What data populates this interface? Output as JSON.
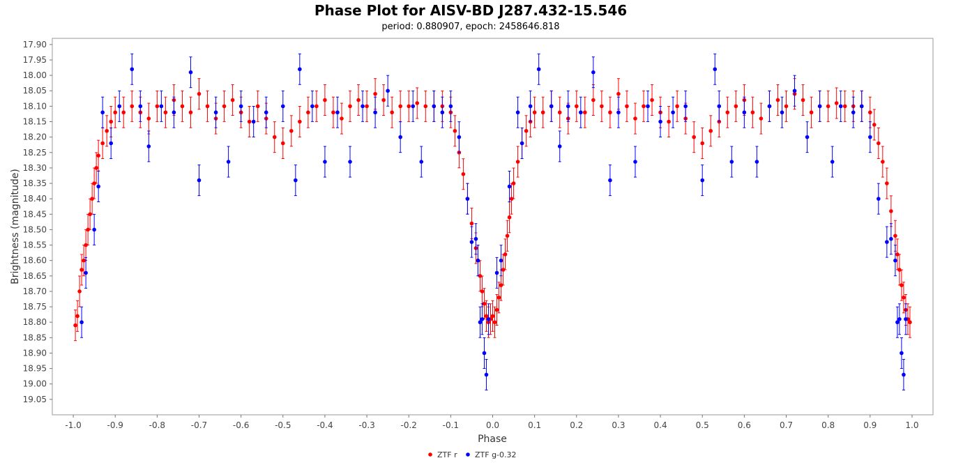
{
  "chart_data": {
    "type": "scatter",
    "title": "Phase Plot for AISV-BD J287.432-15.546",
    "subtitle": "period: 0.880907, epoch: 2458646.818",
    "xlabel": "Phase",
    "ylabel": "Brightness (magnitude)",
    "xlim": [
      -1.05,
      1.05
    ],
    "ylim": [
      19.1,
      17.88
    ],
    "y_inverted": true,
    "grid": false,
    "legend_position": "bottom-center",
    "x_ticks": [
      "-1.0",
      "-0.9",
      "-0.8",
      "-0.7",
      "-0.6",
      "-0.5",
      "-0.4",
      "-0.3",
      "-0.2",
      "-0.1",
      "0.0",
      "0.1",
      "0.2",
      "0.3",
      "0.4",
      "0.5",
      "0.6",
      "0.7",
      "0.8",
      "0.9",
      "1.0"
    ],
    "y_ticks": [
      "17.90",
      "17.95",
      "18.00",
      "18.05",
      "18.10",
      "18.15",
      "18.20",
      "18.25",
      "18.30",
      "18.35",
      "18.40",
      "18.45",
      "18.50",
      "18.55",
      "18.60",
      "18.65",
      "18.70",
      "18.75",
      "18.80",
      "18.85",
      "18.90",
      "18.95",
      "19.00",
      "19.05"
    ],
    "series": [
      {
        "name": "ZTF r",
        "color": "#ff0000",
        "marker": "circle",
        "error_bars": true,
        "x": [
          -0.995,
          -0.99,
          -0.985,
          -0.98,
          -0.975,
          -0.97,
          -0.965,
          -0.96,
          -0.955,
          -0.95,
          -0.945,
          -0.94,
          -0.93,
          -0.92,
          -0.91,
          -0.9,
          -0.88,
          -0.86,
          -0.84,
          -0.82,
          -0.8,
          -0.78,
          -0.76,
          -0.74,
          -0.72,
          -0.7,
          -0.68,
          -0.66,
          -0.64,
          -0.62,
          -0.6,
          -0.58,
          -0.56,
          -0.54,
          -0.52,
          -0.5,
          -0.48,
          -0.46,
          -0.44,
          -0.42,
          -0.4,
          -0.38,
          -0.36,
          -0.34,
          -0.32,
          -0.3,
          -0.28,
          -0.26,
          -0.24,
          -0.22,
          -0.2,
          -0.18,
          -0.16,
          -0.14,
          -0.12,
          -0.1,
          -0.09,
          -0.08,
          -0.07,
          -0.06,
          -0.05,
          -0.04,
          -0.035,
          -0.03,
          -0.025,
          -0.02,
          -0.015,
          -0.01,
          -0.005,
          0.0,
          0.005,
          0.01,
          0.015,
          0.02,
          0.025,
          0.03,
          0.035,
          0.04,
          0.045,
          0.05,
          0.06,
          0.07,
          0.08,
          0.09,
          0.1,
          0.12,
          0.14,
          0.16,
          0.18,
          0.2,
          0.22,
          0.24,
          0.26,
          0.28,
          0.3,
          0.32,
          0.34,
          0.36,
          0.38,
          0.4,
          0.42,
          0.44,
          0.46,
          0.48,
          0.5,
          0.52,
          0.54,
          0.56,
          0.58,
          0.6,
          0.62,
          0.64,
          0.66,
          0.68,
          0.7,
          0.72,
          0.74,
          0.76,
          0.78,
          0.8,
          0.82,
          0.84,
          0.86,
          0.88,
          0.9,
          0.91,
          0.92,
          0.93,
          0.94,
          0.95,
          0.96,
          0.965,
          0.97,
          0.975,
          0.98,
          0.985,
          0.99,
          0.995
        ],
        "y": [
          18.81,
          18.78,
          18.7,
          18.63,
          18.6,
          18.55,
          18.5,
          18.45,
          18.4,
          18.35,
          18.3,
          18.26,
          18.22,
          18.18,
          18.15,
          18.12,
          18.12,
          18.1,
          18.12,
          18.14,
          18.1,
          18.12,
          18.08,
          18.1,
          18.12,
          18.06,
          18.1,
          18.14,
          18.1,
          18.08,
          18.12,
          18.15,
          18.1,
          18.14,
          18.2,
          18.22,
          18.18,
          18.15,
          18.12,
          18.1,
          18.08,
          18.12,
          18.14,
          18.1,
          18.08,
          18.1,
          18.06,
          18.08,
          18.12,
          18.1,
          18.1,
          18.09,
          18.1,
          18.1,
          18.1,
          18.12,
          18.18,
          18.25,
          18.32,
          18.4,
          18.48,
          18.56,
          18.6,
          18.65,
          18.7,
          18.74,
          18.78,
          18.8,
          18.79,
          18.78,
          18.8,
          18.76,
          18.72,
          18.68,
          18.63,
          18.58,
          18.52,
          18.46,
          18.4,
          18.35,
          18.28,
          18.22,
          18.18,
          18.15,
          18.12,
          18.12,
          18.1,
          18.12,
          18.14,
          18.1,
          18.12,
          18.08,
          18.1,
          18.12,
          18.06,
          18.1,
          18.14,
          18.1,
          18.08,
          18.12,
          18.15,
          18.1,
          18.14,
          18.2,
          18.22,
          18.18,
          18.15,
          18.12,
          18.1,
          18.08,
          18.12,
          18.14,
          18.1,
          18.08,
          18.1,
          18.06,
          18.08,
          18.12,
          18.1,
          18.1,
          18.09,
          18.1,
          18.1,
          18.1,
          18.12,
          18.16,
          18.22,
          18.28,
          18.35,
          18.44,
          18.52,
          18.58,
          18.63,
          18.68,
          18.72,
          18.76,
          18.79,
          18.8
        ]
      },
      {
        "name": "ZTF g-0.32",
        "color": "#0000ff",
        "marker": "circle",
        "error_bars": true,
        "x": [
          -0.98,
          -0.97,
          -0.95,
          -0.94,
          -0.93,
          -0.91,
          -0.89,
          -0.86,
          -0.84,
          -0.82,
          -0.79,
          -0.76,
          -0.72,
          -0.7,
          -0.66,
          -0.63,
          -0.6,
          -0.57,
          -0.54,
          -0.5,
          -0.47,
          -0.46,
          -0.43,
          -0.4,
          -0.37,
          -0.34,
          -0.31,
          -0.28,
          -0.25,
          -0.22,
          -0.19,
          -0.17,
          -0.14,
          -0.12,
          -0.1,
          -0.08,
          -0.06,
          -0.05,
          -0.04,
          -0.035,
          -0.03,
          -0.025,
          -0.02,
          -0.015,
          -0.01,
          0.01,
          0.02,
          0.04,
          0.06,
          0.07,
          0.09,
          0.11,
          0.14,
          0.16,
          0.18,
          0.21,
          0.24,
          0.28,
          0.3,
          0.34,
          0.37,
          0.4,
          0.43,
          0.46,
          0.5,
          0.53,
          0.54,
          0.57,
          0.6,
          0.63,
          0.66,
          0.69,
          0.72,
          0.75,
          0.78,
          0.81,
          0.83,
          0.86,
          0.88,
          0.9,
          0.92,
          0.94,
          0.95,
          0.96,
          0.965,
          0.97,
          0.975,
          0.98,
          0.985
        ],
        "y": [
          18.8,
          18.64,
          18.5,
          18.36,
          18.12,
          18.22,
          18.1,
          17.98,
          18.1,
          18.23,
          18.1,
          18.12,
          17.99,
          18.34,
          18.12,
          18.28,
          18.1,
          18.15,
          18.12,
          18.1,
          18.34,
          17.98,
          18.1,
          18.28,
          18.12,
          18.28,
          18.1,
          18.12,
          18.05,
          18.2,
          18.1,
          18.28,
          18.1,
          18.12,
          18.1,
          18.2,
          18.4,
          18.54,
          18.53,
          18.6,
          18.8,
          18.79,
          18.9,
          18.97,
          18.79,
          18.64,
          18.6,
          18.36,
          18.12,
          18.22,
          18.1,
          17.98,
          18.1,
          18.23,
          18.1,
          18.12,
          17.99,
          18.34,
          18.12,
          18.28,
          18.1,
          18.15,
          18.12,
          18.1,
          18.34,
          17.98,
          18.1,
          18.28,
          18.12,
          18.28,
          18.1,
          18.12,
          18.05,
          18.2,
          18.1,
          18.28,
          18.1,
          18.12,
          18.1,
          18.2,
          18.4,
          18.54,
          18.53,
          18.6,
          18.8,
          18.79,
          18.9,
          18.97,
          18.79
        ]
      }
    ]
  }
}
